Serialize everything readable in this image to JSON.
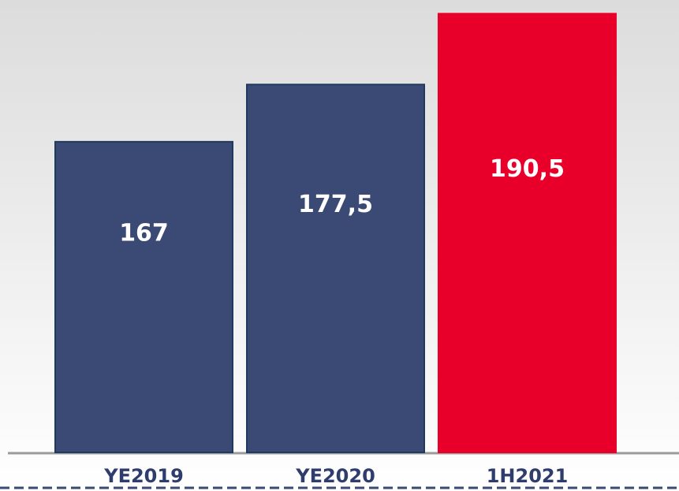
{
  "chart_data": {
    "type": "bar",
    "categories": [
      "YE2019",
      "YE2020",
      "1H2021"
    ],
    "values": [
      167,
      177.5,
      190.5
    ],
    "value_labels": [
      "167",
      "177,5",
      "190,5"
    ],
    "colors": [
      "#3b4a75",
      "#3b4a75",
      "#e8002a"
    ],
    "ylim": [
      110,
      192
    ]
  }
}
